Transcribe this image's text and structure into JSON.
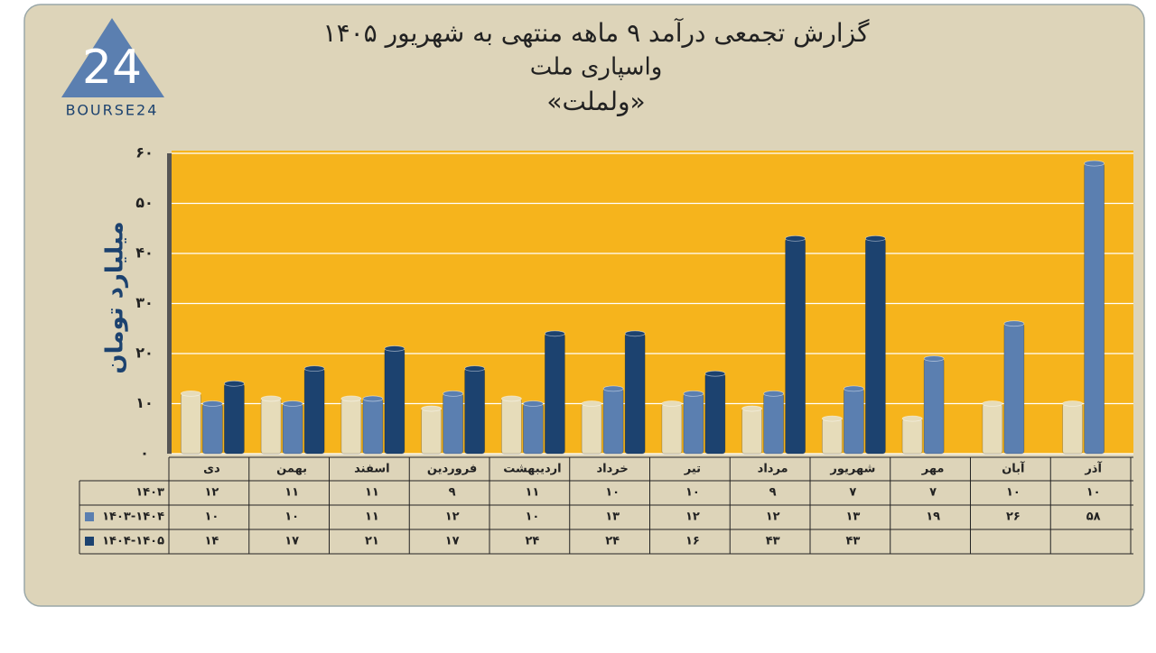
{
  "logo": {
    "mark": "24",
    "text": "BOURSE24"
  },
  "chart_data": {
    "type": "bar",
    "title": "گزارش تجمعی درآمد ۹ ماهه منتهی به شهریور ۱۴۰۵",
    "subtitle": "واسپاری ملت",
    "ticker": "«ولملت»",
    "y_label": "میلیارد تومان",
    "categories": [
      "دی",
      "بهمن",
      "اسفند",
      "فروردین",
      "اردیبهشت",
      "خرداد",
      "تیر",
      "مرداد",
      "شهریور",
      "مهر",
      "آبان",
      "آذر"
    ],
    "series": [
      {
        "name": "۱۴۰۳",
        "color": "#e6dcba",
        "values": [
          12,
          11,
          11,
          9,
          11,
          10,
          10,
          9,
          7,
          7,
          10,
          10
        ],
        "value_labels": [
          "۱۲",
          "۱۱",
          "۱۱",
          "۹",
          "۱۱",
          "۱۰",
          "۱۰",
          "۹",
          "۷",
          "۷",
          "۱۰",
          "۱۰"
        ]
      },
      {
        "name": "۱۴۰۳-۱۴۰۴",
        "color": "#5b7fb0",
        "values": [
          10,
          10,
          11,
          12,
          10,
          13,
          12,
          12,
          13,
          19,
          26,
          58
        ],
        "value_labels": [
          "۱۰",
          "۱۰",
          "۱۱",
          "۱۲",
          "۱۰",
          "۱۳",
          "۱۲",
          "۱۲",
          "۱۳",
          "۱۹",
          "۲۶",
          "۵۸"
        ]
      },
      {
        "name": "۱۴۰۴-۱۴۰۵",
        "color": "#1c426f",
        "values": [
          14,
          17,
          21,
          17,
          24,
          24,
          16,
          43,
          43,
          null,
          null,
          null
        ],
        "value_labels": [
          "۱۴",
          "۱۷",
          "۲۱",
          "۱۷",
          "۲۴",
          "۲۴",
          "۱۶",
          "۴۳",
          "۴۳",
          null,
          null,
          null
        ]
      }
    ],
    "ylim": [
      0,
      60
    ],
    "yticks": [
      {
        "value": 0,
        "label": "۰"
      },
      {
        "value": 10,
        "label": "۱۰"
      },
      {
        "value": 20,
        "label": "۲۰"
      },
      {
        "value": 30,
        "label": "۳۰"
      },
      {
        "value": 40,
        "label": "۴۰"
      },
      {
        "value": 50,
        "label": "۵۰"
      },
      {
        "value": 60,
        "label": "۶۰"
      }
    ],
    "grid": true,
    "plot_color": "#f6b41c"
  }
}
